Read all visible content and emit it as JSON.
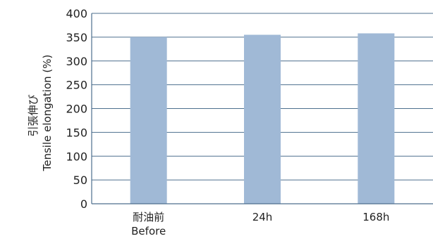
{
  "chart_data": {
    "type": "bar",
    "categories": [
      {
        "line1": "耐油前",
        "line2": "Before"
      },
      {
        "line1": "24h",
        "line2": ""
      },
      {
        "line1": "168h",
        "line2": ""
      }
    ],
    "values": [
      350,
      355,
      358
    ],
    "ylabel_jp": "引張伸び",
    "ylabel_en": "Tensile elongation (%)",
    "ylim": [
      0,
      400
    ],
    "yticks": [
      0,
      50,
      100,
      150,
      200,
      250,
      300,
      350,
      400
    ],
    "grid": true,
    "colors": {
      "bar": "#a0b9d6",
      "grid": "#4d6f8e",
      "axis": "#4d6f8e"
    }
  }
}
